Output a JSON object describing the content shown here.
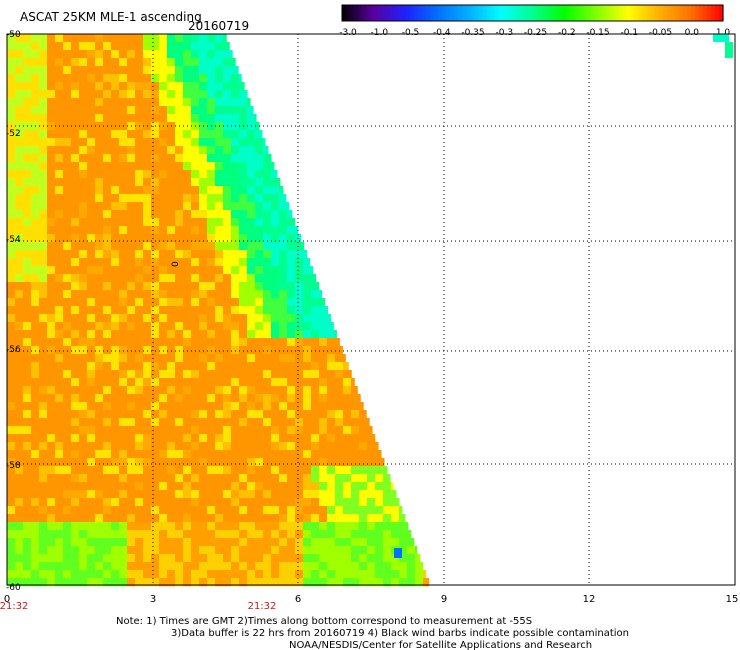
{
  "header": {
    "title": "ASCAT 25KM MLE-1 ascending",
    "date": "20160719"
  },
  "colorbar": {
    "labels": [
      "-3.0",
      "-1.0",
      "-0.5",
      "-0.4",
      "-0.35",
      "-0.3",
      "-0.25",
      "-0.2",
      "-0.15",
      "-0.1",
      "-0.05",
      "0.0",
      "1.0"
    ],
    "colors": [
      "#000000",
      "#5a00a0",
      "#2020ff",
      "#0070ff",
      "#00b0ff",
      "#00ffff",
      "#00ff90",
      "#00ff00",
      "#80ff00",
      "#ffff00",
      "#ffb000",
      "#ff7000",
      "#ff0000"
    ]
  },
  "axes": {
    "x_ticks": [
      "0",
      "3",
      "6",
      "9",
      "12",
      "15"
    ],
    "y_ticks": [
      "-50",
      "-52",
      "-54",
      "-56",
      "-58",
      "-60"
    ],
    "time_labels": [
      "21:32",
      "21:32"
    ],
    "contour_label": "0"
  },
  "notes": {
    "line1": "Note: 1) Times are GMT 2)Times along bottom correspond to measurement at -55S",
    "line2": "3)Data buffer is 22 hrs from 20160719 4) Black wind barbs indicate possible contamination",
    "line3": "NOAA/NESDIS/Center for Satellite Applications and Research"
  },
  "style": {
    "grid_color": "#000000",
    "time_label_color": "#c81e1e"
  }
}
